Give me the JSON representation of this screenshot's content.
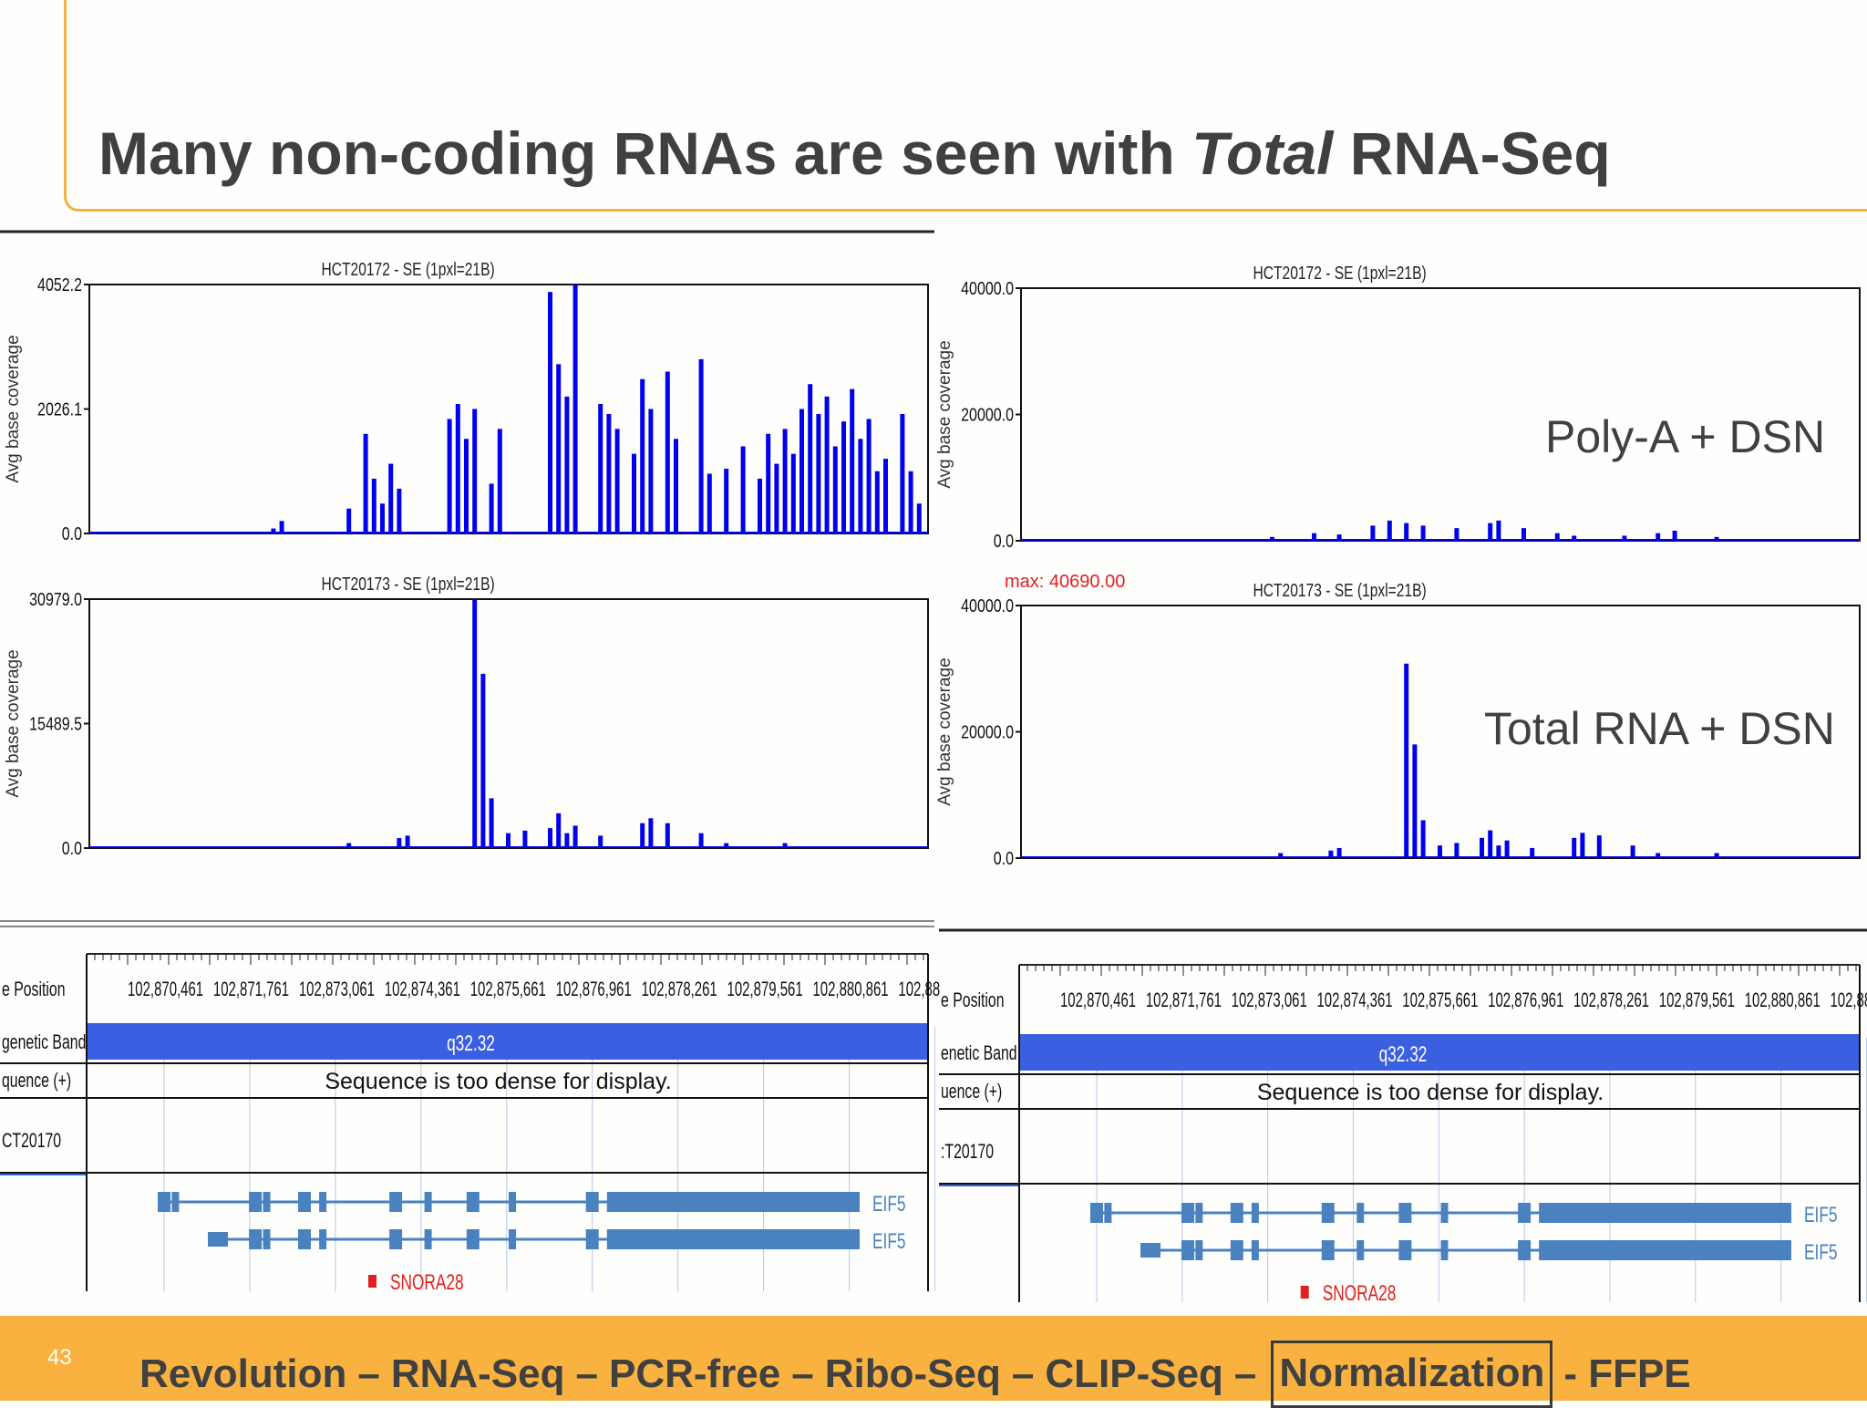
{
  "slide": {
    "title_pre": "Many non-coding RNAs are seen with ",
    "title_italic": "Total",
    "title_post": " RNA-Seq",
    "page_number": "43"
  },
  "labels": {
    "polya": "Poly-A  + DSN",
    "total": "Total RNA + DSN"
  },
  "footer": {
    "nav": [
      "Revolution",
      "–",
      "RNA-Seq",
      "–",
      "PCR-free",
      "–",
      "Ribo-Seq",
      "–",
      "CLIP-Seq",
      "–",
      "Normalization",
      "- FFPE"
    ],
    "highlighted": "Normalization"
  },
  "colors": {
    "accent": "#f9b23f",
    "coverage": "#0000ee",
    "band": "#3a5fe0",
    "gene": "#4a82c0",
    "snora": "#e02020"
  },
  "genome_browser": {
    "track_labels": {
      "position_left": "e Position",
      "position_right": "e Position",
      "band_left": "genetic Band",
      "band_right": "enetic Band",
      "sequence_left": "quence (+)",
      "sequence_right": "uence (+)",
      "sample_left": "CT20170",
      "sample_right": ":T20170"
    },
    "positions": [
      "102,870,461",
      "102,871,761",
      "102,873,061",
      "102,874,361",
      "102,875,661",
      "102,876,961",
      "102,878,261",
      "102,879,561",
      "102,880,861",
      "102,88"
    ],
    "band": "q32.32",
    "sequence_msg": "Sequence is too dense for display.",
    "genes": [
      "EIF5",
      "EIF5"
    ],
    "snora": "SNORA28"
  },
  "chart_data": [
    {
      "type": "area",
      "title": "HCT20172 - SE (1pxl=21B)",
      "ylabel": "Avg base coverage",
      "yticks": [
        "4052.2",
        "2026.1",
        "0.0"
      ],
      "ylim": [
        0,
        4052.2
      ],
      "max_label": "",
      "peaks": [
        [
          0.22,
          0.02
        ],
        [
          0.23,
          0.05
        ],
        [
          0.31,
          0.1
        ],
        [
          0.33,
          0.4
        ],
        [
          0.34,
          0.22
        ],
        [
          0.35,
          0.12
        ],
        [
          0.36,
          0.28
        ],
        [
          0.37,
          0.18
        ],
        [
          0.43,
          0.46
        ],
        [
          0.44,
          0.52
        ],
        [
          0.45,
          0.38
        ],
        [
          0.46,
          0.5
        ],
        [
          0.48,
          0.2
        ],
        [
          0.49,
          0.42
        ],
        [
          0.55,
          0.97
        ],
        [
          0.56,
          0.68
        ],
        [
          0.57,
          0.55
        ],
        [
          0.58,
          1.0
        ],
        [
          0.61,
          0.52
        ],
        [
          0.62,
          0.48
        ],
        [
          0.63,
          0.42
        ],
        [
          0.65,
          0.32
        ],
        [
          0.66,
          0.62
        ],
        [
          0.67,
          0.5
        ],
        [
          0.69,
          0.65
        ],
        [
          0.7,
          0.38
        ],
        [
          0.73,
          0.7
        ],
        [
          0.74,
          0.24
        ],
        [
          0.76,
          0.26
        ],
        [
          0.78,
          0.35
        ],
        [
          0.8,
          0.22
        ],
        [
          0.81,
          0.4
        ],
        [
          0.82,
          0.28
        ],
        [
          0.83,
          0.42
        ],
        [
          0.84,
          0.32
        ],
        [
          0.85,
          0.5
        ],
        [
          0.86,
          0.6
        ],
        [
          0.87,
          0.48
        ],
        [
          0.88,
          0.55
        ],
        [
          0.89,
          0.35
        ],
        [
          0.9,
          0.45
        ],
        [
          0.91,
          0.58
        ],
        [
          0.92,
          0.38
        ],
        [
          0.93,
          0.46
        ],
        [
          0.94,
          0.25
        ],
        [
          0.95,
          0.3
        ],
        [
          0.97,
          0.48
        ],
        [
          0.98,
          0.25
        ],
        [
          0.99,
          0.12
        ]
      ]
    },
    {
      "type": "area",
      "title": "HCT20173 - SE (1pxl=21B)",
      "ylabel": "Avg base coverage",
      "yticks": [
        "30979.0",
        "15489.5",
        "0.0"
      ],
      "ylim": [
        0,
        30979.0
      ],
      "max_label": "",
      "peaks": [
        [
          0.31,
          0.02
        ],
        [
          0.37,
          0.04
        ],
        [
          0.38,
          0.05
        ],
        [
          0.46,
          1.0
        ],
        [
          0.47,
          0.7
        ],
        [
          0.48,
          0.2
        ],
        [
          0.5,
          0.06
        ],
        [
          0.52,
          0.07
        ],
        [
          0.55,
          0.08
        ],
        [
          0.56,
          0.14
        ],
        [
          0.57,
          0.06
        ],
        [
          0.58,
          0.09
        ],
        [
          0.61,
          0.05
        ],
        [
          0.66,
          0.1
        ],
        [
          0.67,
          0.12
        ],
        [
          0.69,
          0.1
        ],
        [
          0.73,
          0.06
        ],
        [
          0.76,
          0.02
        ],
        [
          0.83,
          0.02
        ]
      ]
    },
    {
      "type": "area",
      "title": "HCT20172 - SE (1pxl=21B)",
      "ylabel": "Avg base coverage",
      "yticks": [
        "40000.0",
        "20000.0",
        "0.0"
      ],
      "ylim": [
        0,
        40000
      ],
      "max_label": "",
      "peaks": [
        [
          0.3,
          0.015
        ],
        [
          0.35,
          0.03
        ],
        [
          0.38,
          0.025
        ],
        [
          0.42,
          0.06
        ],
        [
          0.44,
          0.08
        ],
        [
          0.46,
          0.07
        ],
        [
          0.48,
          0.06
        ],
        [
          0.52,
          0.05
        ],
        [
          0.56,
          0.07
        ],
        [
          0.57,
          0.08
        ],
        [
          0.6,
          0.05
        ],
        [
          0.64,
          0.03
        ],
        [
          0.66,
          0.02
        ],
        [
          0.72,
          0.02
        ],
        [
          0.76,
          0.03
        ],
        [
          0.78,
          0.04
        ],
        [
          0.83,
          0.015
        ]
      ]
    },
    {
      "type": "area",
      "title": "HCT20173 - SE (1pxl=21B)",
      "ylabel": "Avg base coverage",
      "yticks": [
        "40000.0",
        "20000.0",
        "0.0"
      ],
      "ylim": [
        0,
        40000
      ],
      "max_label": "max: 40690.00",
      "peaks": [
        [
          0.31,
          0.02
        ],
        [
          0.37,
          0.03
        ],
        [
          0.38,
          0.04
        ],
        [
          0.46,
          0.77
        ],
        [
          0.47,
          0.45
        ],
        [
          0.48,
          0.15
        ],
        [
          0.5,
          0.05
        ],
        [
          0.52,
          0.06
        ],
        [
          0.55,
          0.08
        ],
        [
          0.56,
          0.11
        ],
        [
          0.57,
          0.05
        ],
        [
          0.58,
          0.07
        ],
        [
          0.61,
          0.04
        ],
        [
          0.66,
          0.08
        ],
        [
          0.67,
          0.1
        ],
        [
          0.69,
          0.09
        ],
        [
          0.73,
          0.05
        ],
        [
          0.76,
          0.02
        ],
        [
          0.83,
          0.02
        ]
      ]
    }
  ]
}
